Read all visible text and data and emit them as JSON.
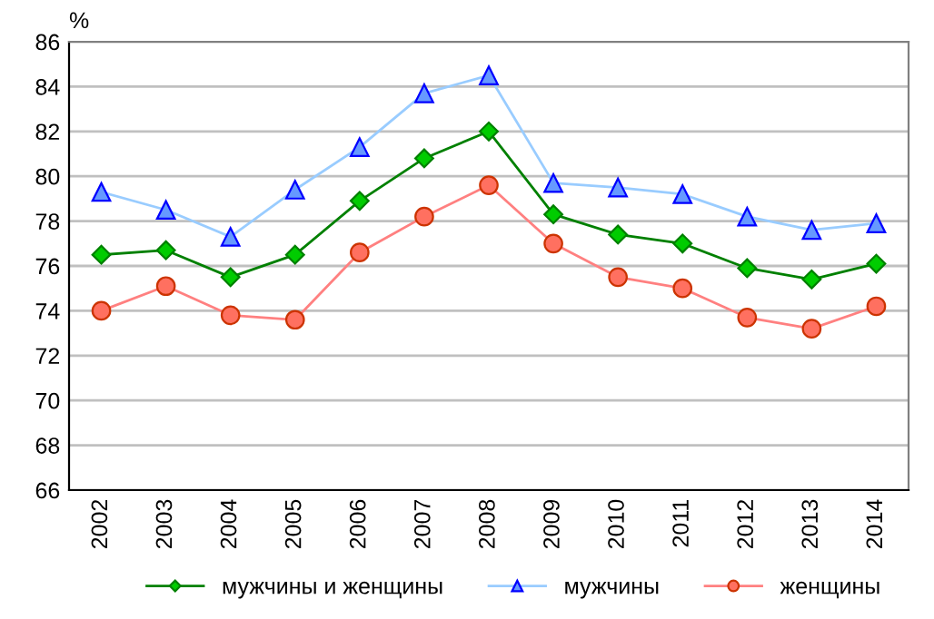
{
  "chart_data": {
    "type": "line",
    "ylabel": "%",
    "categories": [
      "2002",
      "2003",
      "2004",
      "2005",
      "2006",
      "2007",
      "2008",
      "2009",
      "2010",
      "2011",
      "2012",
      "2013",
      "2014"
    ],
    "series": [
      {
        "name": "мужчины и женщины",
        "color": "#008000",
        "marker": "diamond",
        "values": [
          76.5,
          76.7,
          75.5,
          76.5,
          78.9,
          80.8,
          82.0,
          78.3,
          77.4,
          77.0,
          75.9,
          75.4,
          76.1
        ]
      },
      {
        "name": "мужчины",
        "color": "#99ccff",
        "marker": "triangle",
        "values": [
          79.3,
          78.5,
          77.3,
          79.4,
          81.3,
          83.7,
          84.5,
          79.7,
          79.5,
          79.2,
          78.2,
          77.6,
          77.9
        ]
      },
      {
        "name": "женщины",
        "color": "#ff8080",
        "marker": "circle",
        "values": [
          74.0,
          75.1,
          73.8,
          73.6,
          76.6,
          78.2,
          79.6,
          77.0,
          75.5,
          75.0,
          73.7,
          73.2,
          74.2
        ]
      }
    ],
    "ylim": [
      66,
      86
    ],
    "yticks": [
      66,
      68,
      70,
      72,
      74,
      76,
      78,
      80,
      82,
      84,
      86
    ],
    "grid": "y",
    "legend": "bottom"
  }
}
